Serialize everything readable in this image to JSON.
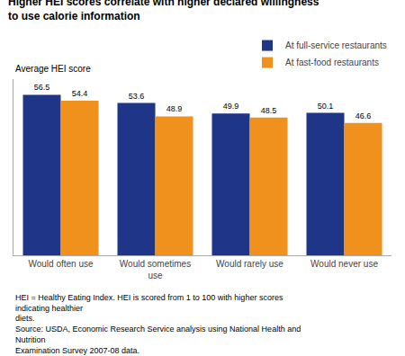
{
  "chart_data": {
    "type": "bar",
    "title": "Higher HEI scores correlate with higher declared willingness to use calorie information",
    "ylabel": "Average HEI score",
    "annotations": [
      "HEI = Healthy Eating Index. HEI is scored from 1 to 100 with higher scores indicating healthier\ndiets.\nSource: USDA, Economic Research Service analysis using National Health and Nutrition\nExamination Survey 2007-08 data."
    ],
    "categories": [
      "Would often use",
      "Would sometimes use",
      "Would rarely use",
      "Would never use"
    ],
    "series": [
      {
        "name": "At full-service restaurants",
        "values": [
          56.5,
          53.6,
          49.9,
          50.1
        ],
        "color": "#1f3587"
      },
      {
        "name": "At fast-food restaurants",
        "values": [
          54.4,
          48.9,
          48.5,
          46.6
        ],
        "color": "#f0911e"
      }
    ],
    "ylim": [
      0,
      62
    ],
    "tick_labels": "x",
    "data_labels": true,
    "legend": "upper right",
    "grid": false
  }
}
